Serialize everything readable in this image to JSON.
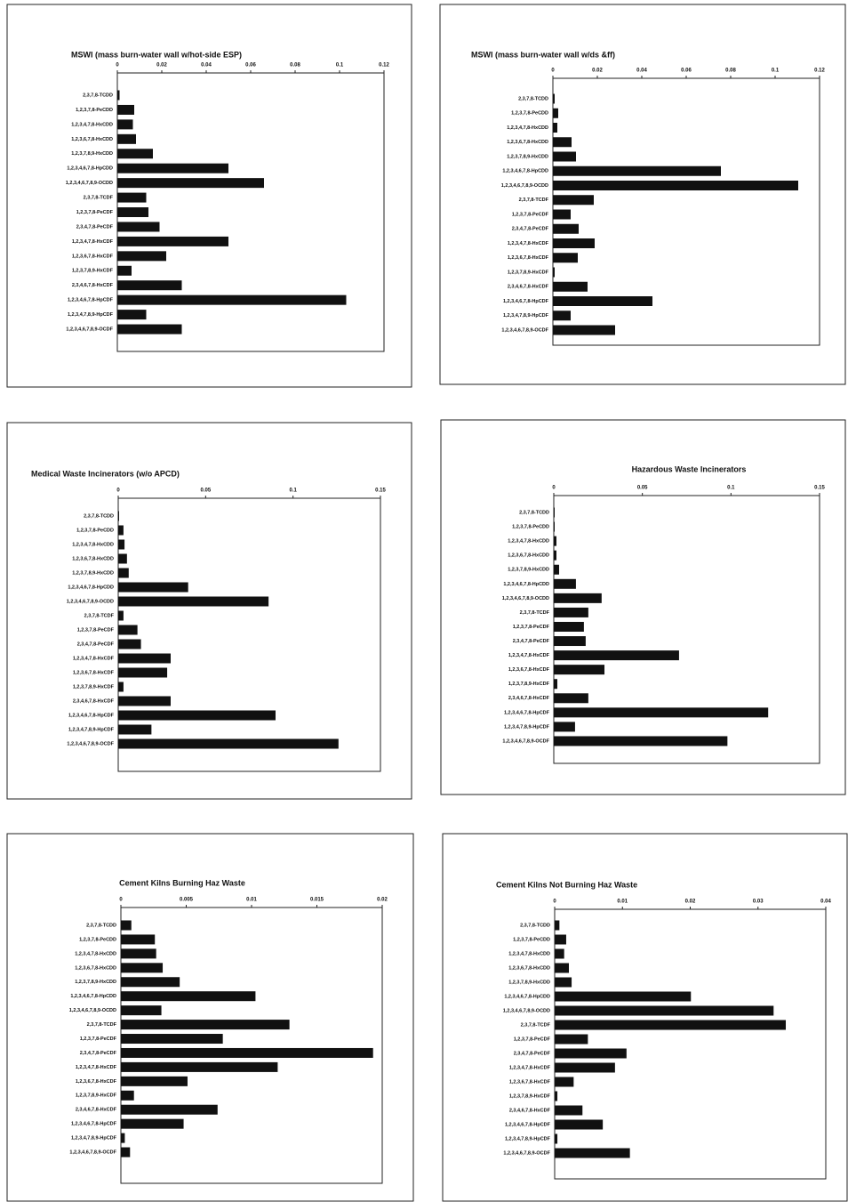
{
  "chart_data": [
    {
      "type": "bar",
      "orientation": "horizontal",
      "title": "MSWI (mass burn-water wall w/hot-side ESP)",
      "color": "#111111",
      "categories": [
        "2,3,7,8-TCDD",
        "1,2,3,7,8-PeCDD",
        "1,2,3,4,7,8-HxCDD",
        "1,2,3,6,7,8-HxCDD",
        "1,2,3,7,8,9-HxCDD",
        "1,2,3,4,6,7,8-HpCDD",
        "1,2,3,4,6,7,8,9-OCDD",
        "2,3,7,8-TCDF",
        "1,2,3,7,8-PeCDF",
        "2,3,4,7,8-PeCDF",
        "1,2,3,4,7,8-HxCDF",
        "1,2,3,6,7,8-HxCDF",
        "1,2,3,7,8,9-HxCDF",
        "2,3,4,6,7,8-HxCDF",
        "1,2,3,4,6,7,8-HpCDF",
        "1,2,3,4,7,8,9-HpCDF",
        "1,2,3,4,6,7,8,9-OCDF"
      ],
      "values": [
        0.001,
        0.0076,
        0.007,
        0.0084,
        0.016,
        0.05,
        0.066,
        0.013,
        0.014,
        0.019,
        0.05,
        0.022,
        0.0064,
        0.029,
        0.103,
        0.013,
        0.029
      ],
      "xlim": [
        0,
        0.12
      ],
      "xticks": [
        0,
        0.02,
        0.04,
        0.06,
        0.08,
        0.1,
        0.12
      ]
    },
    {
      "type": "bar",
      "orientation": "horizontal",
      "title": "MSWI (mass burn-water wall w/ds &ff)",
      "color": "#111111",
      "categories": [
        "2,3,7,8-TCDD",
        "1,2,3,7,8-PeCDD",
        "1,2,3,4,7,8-HxCDD",
        "1,2,3,6,7,8-HxCDD",
        "1,2,3,7,8,9-HxCDD",
        "1,2,3,4,6,7,8-HpCDD",
        "1,2,3,4,6,7,8,9-OCDD",
        "2,3,7,8-TCDF",
        "1,2,3,7,8-PeCDF",
        "2,3,4,7,8-PeCDF",
        "1,2,3,4,7,8-HxCDF",
        "1,2,3,6,7,8-HxCDF",
        "1,2,3,7,8,9-HxCDF",
        "2,3,4,6,7,8-HxCDF",
        "1,2,3,4,6,7,8-HpCDF",
        "1,2,3,4,7,8,9-HpCDF",
        "1,2,3,4,6,7,8,9-OCDF"
      ],
      "values": [
        0.0008,
        0.0024,
        0.002,
        0.0084,
        0.0104,
        0.0756,
        0.1104,
        0.0184,
        0.008,
        0.0116,
        0.0188,
        0.0112,
        0.0008,
        0.0156,
        0.0448,
        0.008,
        0.028
      ],
      "xlim": [
        0,
        0.12
      ],
      "xticks": [
        0,
        0.02,
        0.04,
        0.06,
        0.08,
        0.1,
        0.12
      ]
    },
    {
      "type": "bar",
      "orientation": "horizontal",
      "title": "Medical Waste Incinerators (w/o APCD)",
      "color": "#111111",
      "categories": [
        "2,3,7,8-TCDD",
        "1,2,3,7,8-PeCDD",
        "1,2,3,4,7,8-HxCDD",
        "1,2,3,6,7,8-HxCDD",
        "1,2,3,7,8,9-HxCDD",
        "1,2,3,4,6,7,8-HpCDD",
        "1,2,3,4,6,7,8,9-OCDD",
        "2,3,7,8-TCDF",
        "1,2,3,7,8-PeCDF",
        "2,3,4,7,8-PeCDF",
        "1,2,3,4,7,8-HxCDF",
        "1,2,3,6,7,8-HxCDF",
        "1,2,3,7,8,9-HxCDF",
        "2,3,4,6,7,8-HxCDF",
        "1,2,3,4,6,7,8-HpCDF",
        "1,2,3,4,7,8,9-HpCDF",
        "1,2,3,4,6,7,8,9-OCDF"
      ],
      "values": [
        0.0005,
        0.003,
        0.0036,
        0.005,
        0.006,
        0.04,
        0.086,
        0.003,
        0.011,
        0.013,
        0.03,
        0.028,
        0.003,
        0.03,
        0.09,
        0.019,
        0.126
      ],
      "xlim": [
        0,
        0.15
      ],
      "xticks": [
        0,
        0.05,
        0.1,
        0.15
      ]
    },
    {
      "type": "bar",
      "orientation": "horizontal",
      "title": "Hazardous Waste Incinerators",
      "color": "#111111",
      "categories": [
        "2,3,7,8-TCDD",
        "1,2,3,7,8-PeCDD",
        "1,2,3,4,7,8-HxCDD",
        "1,2,3,6,7,8-HxCDD",
        "1,2,3,7,8,9-HxCDD",
        "1,2,3,4,6,7,8-HpCDD",
        "1,2,3,4,6,7,8,9-OCDD",
        "2,3,7,8-TCDF",
        "1,2,3,7,8-PeCDF",
        "2,3,4,7,8-PeCDF",
        "1,2,3,4,7,8-HxCDF",
        "1,2,3,6,7,8-HxCDF",
        "1,2,3,7,8,9-HxCDF",
        "2,3,4,6,7,8-HxCDF",
        "1,2,3,4,6,7,8-HpCDF",
        "1,2,3,4,7,8,9-HpCDF",
        "1,2,3,4,6,7,8,9-OCDF"
      ],
      "values": [
        0.0005,
        0.0005,
        0.0015,
        0.0015,
        0.003,
        0.0125,
        0.027,
        0.0195,
        0.017,
        0.018,
        0.0707,
        0.0286,
        0.002,
        0.0195,
        0.121,
        0.012,
        0.098
      ],
      "xlim": [
        0,
        0.15
      ],
      "xticks": [
        0,
        0.05,
        0.1,
        0.15
      ]
    },
    {
      "type": "bar",
      "orientation": "horizontal",
      "title": "Cement Kilns Burning Haz Waste",
      "color": "#111111",
      "categories": [
        "2,3,7,8-TCDD",
        "1,2,3,7,8-PeCDD",
        "1,2,3,4,7,8-HxCDD",
        "1,2,3,6,7,8-HxCDD",
        "1,2,3,7,8,9-HxCDD",
        "1,2,3,4,6,7,8-HpCDD",
        "1,2,3,4,6,7,8,9-OCDD",
        "2,3,7,8-TCDF",
        "1,2,3,7,8-PeCDF",
        "2,3,4,7,8-PeCDF",
        "1,2,3,4,7,8-HxCDF",
        "1,2,3,6,7,8-HxCDF",
        "1,2,3,7,8,9-HxCDF",
        "2,3,4,6,7,8-HxCDF",
        "1,2,3,4,6,7,8-HpCDF",
        "1,2,3,4,7,8,9-HpCDF",
        "1,2,3,4,6,7,8,9-OCDF"
      ],
      "values": [
        0.0008,
        0.0026,
        0.0027,
        0.0032,
        0.0045,
        0.0103,
        0.0031,
        0.0129,
        0.0078,
        0.0193,
        0.012,
        0.0051,
        0.001,
        0.0074,
        0.0048,
        0.0003,
        0.0007
      ],
      "xlim": [
        0,
        0.02
      ],
      "xticks": [
        0,
        0.005,
        0.01,
        0.015,
        0.02
      ]
    },
    {
      "type": "bar",
      "orientation": "horizontal",
      "title": "Cement Kilns Not Burning Haz Waste",
      "color": "#111111",
      "categories": [
        "2,3,7,8-TCDD",
        "1,2,3,7,8-PeCDD",
        "1,2,3,4,7,8-HxCDD",
        "1,2,3,6,7,8-HxCDD",
        "1,2,3,7,8,9-HxCDD",
        "1,2,3,4,6,7,8-HpCDD",
        "1,2,3,4,6,7,8,9-OCDD",
        "2,3,7,8-TCDF",
        "1,2,3,7,8-PeCDF",
        "2,3,4,7,8-PeCDF",
        "1,2,3,4,7,8-HxCDF",
        "1,2,3,6,7,8-HxCDF",
        "1,2,3,7,8,9-HxCDF",
        "2,3,4,6,7,8-HxCDF",
        "1,2,3,4,6,7,8-HpCDF",
        "1,2,3,4,7,8,9-HpCDF",
        "1,2,3,4,6,7,8,9-OCDF"
      ],
      "values": [
        0.0007,
        0.0017,
        0.0014,
        0.0021,
        0.0025,
        0.0201,
        0.0323,
        0.0341,
        0.0049,
        0.0106,
        0.0089,
        0.0028,
        0.0004,
        0.0041,
        0.0071,
        0.0004,
        0.0111
      ],
      "xlim": [
        0,
        0.04
      ],
      "xticks": [
        0,
        0.01,
        0.02,
        0.03,
        0.04
      ]
    }
  ]
}
